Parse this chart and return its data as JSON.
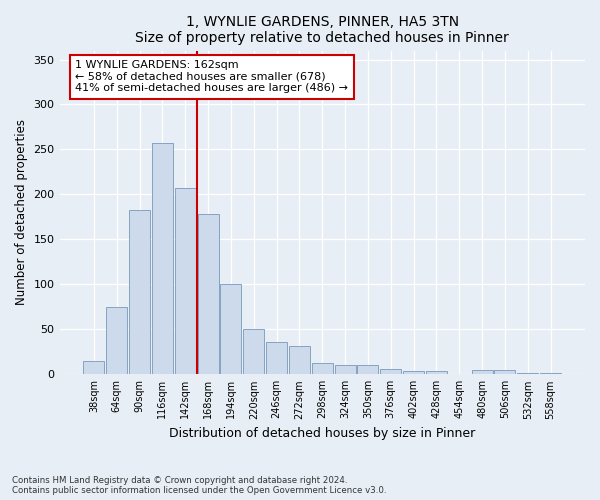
{
  "title_line1": "1, WYNLIE GARDENS, PINNER, HA5 3TN",
  "title_line2": "Size of property relative to detached houses in Pinner",
  "xlabel": "Distribution of detached houses by size in Pinner",
  "ylabel": "Number of detached properties",
  "bar_color": "#cddaeb",
  "bar_edge_color": "#7799bb",
  "categories": [
    "38sqm",
    "64sqm",
    "90sqm",
    "116sqm",
    "142sqm",
    "168sqm",
    "194sqm",
    "220sqm",
    "246sqm",
    "272sqm",
    "298sqm",
    "324sqm",
    "350sqm",
    "376sqm",
    "402sqm",
    "428sqm",
    "454sqm",
    "480sqm",
    "506sqm",
    "532sqm",
    "558sqm"
  ],
  "values": [
    15,
    75,
    183,
    257,
    207,
    178,
    100,
    50,
    36,
    32,
    13,
    10,
    10,
    6,
    4,
    4,
    0,
    5,
    5,
    1,
    2
  ],
  "vline_x": 4.5,
  "vline_color": "#cc0000",
  "annotation_text": "1 WYNLIE GARDENS: 162sqm\n← 58% of detached houses are smaller (678)\n41% of semi-detached houses are larger (486) →",
  "annotation_box_color": "#ffffff",
  "annotation_box_edge_color": "#cc0000",
  "ylim": [
    0,
    360
  ],
  "yticks": [
    0,
    50,
    100,
    150,
    200,
    250,
    300,
    350
  ],
  "footer_line1": "Contains HM Land Registry data © Crown copyright and database right 2024.",
  "footer_line2": "Contains public sector information licensed under the Open Government Licence v3.0.",
  "background_color": "#e8eef5",
  "plot_bg_color": "#e8eef5",
  "figsize": [
    6.0,
    5.0
  ],
  "dpi": 100
}
